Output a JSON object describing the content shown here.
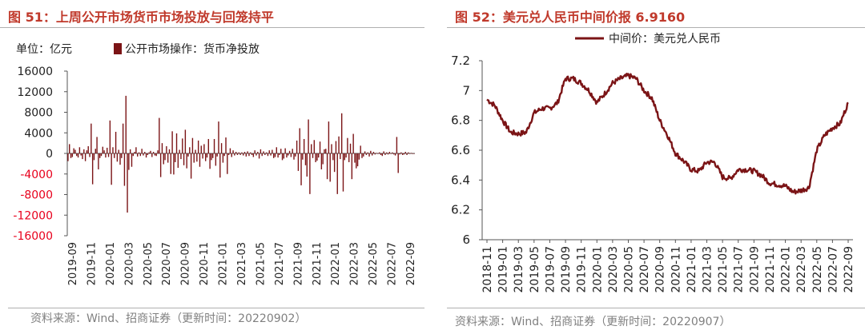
{
  "left": {
    "title": "图 51：上周公开市场货币市场投放与回笼持平",
    "source": "资料来源：Wind、招商证券（更新时间：20220902）",
    "chart_data": {
      "type": "bar",
      "unit_label": "单位：亿元",
      "legend": "公开市场操作：货币净投放",
      "color": "#7b1416",
      "ylim": [
        -16000,
        16000
      ],
      "yticks": [
        "16000",
        "12000",
        "8000",
        "4000",
        "0",
        "-4000",
        "-8000",
        "-12000",
        "-16000"
      ],
      "xticks": [
        "2019-09",
        "2019-11",
        "2020-01",
        "2020-03",
        "2020-05",
        "2020-07",
        "2020-09",
        "2020-11",
        "2021-01",
        "2021-03",
        "2021-05",
        "2021-07",
        "2021-09",
        "2021-11",
        "2022-01",
        "2022-03",
        "2022-05",
        "2022-07",
        "2022-09"
      ],
      "values": [
        -1500,
        1800,
        -900,
        -700,
        1000,
        700,
        -500,
        -800,
        1200,
        -400,
        -1100,
        800,
        -1500,
        600,
        1400,
        -700,
        5800,
        -6000,
        -1300,
        900,
        3200,
        -3100,
        -900,
        -500,
        1300,
        600,
        -800,
        1100,
        -700,
        6400,
        -6100,
        1200,
        -900,
        4200,
        -1600,
        700,
        -2200,
        -900,
        5800,
        -6300,
        11200,
        -11500,
        -3200,
        800,
        -2600,
        -500,
        300,
        1200,
        -600,
        200,
        -500,
        900,
        -400,
        300,
        -800,
        -300,
        200,
        500,
        -700,
        300,
        -400,
        -500,
        600,
        6900,
        -4600,
        2000,
        -2100,
        -1300,
        1400,
        -1800,
        800,
        -4000,
        4300,
        -4100,
        -1700,
        3900,
        -2800,
        700,
        -1100,
        2900,
        -2300,
        4600,
        -2900,
        -600,
        1200,
        -4900,
        3000,
        -1800,
        700,
        -1600,
        2500,
        -2600,
        1500,
        -1000,
        1800,
        -1500,
        -800,
        2800,
        -3000,
        -1300,
        -900,
        2800,
        -2400,
        -600,
        6200,
        -4700,
        2000,
        -1800,
        -500,
        3100,
        -4000,
        -300,
        1000,
        -700,
        600,
        -400,
        300,
        -300,
        200,
        -300,
        200,
        -400,
        300,
        -600,
        400,
        -500,
        200,
        -300,
        -700,
        600,
        -400,
        300,
        -1000,
        800,
        -500,
        400,
        -300,
        200,
        -500,
        600,
        -400,
        700,
        -900,
        -700,
        1200,
        -800,
        -300,
        900,
        -1300,
        -1000,
        1000,
        -800,
        -400,
        500,
        -700,
        900,
        -1200,
        -600,
        2500,
        -3400,
        4900,
        -6200,
        -1200,
        2800,
        -2300,
        -4500,
        6600,
        -7900,
        1800,
        -900,
        2600,
        -1700,
        -1400,
        -800,
        2300,
        -3100,
        -2100,
        800,
        900,
        -5000,
        6200,
        -5500,
        1800,
        -1300,
        -3600,
        2400,
        -7900,
        3300,
        -1100,
        7800,
        -7400,
        -1300,
        -800,
        3000,
        -1700,
        1900,
        -5000,
        3800,
        -1800,
        -2900,
        -2500,
        -1200,
        1500,
        -900,
        -600,
        400,
        -300,
        200,
        -600,
        500,
        -400,
        300,
        -200,
        100,
        -100,
        200,
        -300,
        -500,
        400,
        -300,
        200,
        -200,
        300,
        -100,
        200,
        -200,
        -400,
        3200,
        -3800,
        -200,
        200,
        -300,
        -200,
        300,
        -300,
        200,
        -100,
        100,
        -100,
        0
      ]
    }
  },
  "right": {
    "title": "图 52：美元兑人民币中间价报 6.9160",
    "source": "资料来源：Wind、招商证券（更新时间：20220907）",
    "chart_data": {
      "type": "line",
      "legend": "中间价：美元兑人民币",
      "color": "#7b1416",
      "ylim": [
        6,
        7.2
      ],
      "yticks": [
        "7.2",
        "7",
        "6.8",
        "6.6",
        "6.4",
        "6.2",
        "6"
      ],
      "xticks": [
        "2018-11",
        "2019-01",
        "2019-03",
        "2019-05",
        "2019-07",
        "2019-09",
        "2019-11",
        "2020-01",
        "2020-03",
        "2020-05",
        "2020-07",
        "2020-09",
        "2020-11",
        "2021-01",
        "2021-03",
        "2021-05",
        "2021-07",
        "2021-09",
        "2021-11",
        "2022-01",
        "2022-03",
        "2022-05",
        "2022-07",
        "2022-09"
      ],
      "x": [
        "2018-11",
        "2018-12",
        "2019-01",
        "2019-02",
        "2019-03",
        "2019-04",
        "2019-05",
        "2019-06",
        "2019-07",
        "2019-08",
        "2019-09",
        "2019-10",
        "2019-11",
        "2019-12",
        "2020-01",
        "2020-02",
        "2020-03",
        "2020-04",
        "2020-05",
        "2020-06",
        "2020-07",
        "2020-08",
        "2020-09",
        "2020-10",
        "2020-11",
        "2020-12",
        "2021-01",
        "2021-02",
        "2021-03",
        "2021-04",
        "2021-05",
        "2021-06",
        "2021-07",
        "2021-08",
        "2021-09",
        "2021-10",
        "2021-11",
        "2021-12",
        "2022-01",
        "2022-02",
        "2022-03",
        "2022-04",
        "2022-05",
        "2022-06",
        "2022-07",
        "2022-08",
        "2022-09"
      ],
      "values": [
        6.94,
        6.9,
        6.8,
        6.72,
        6.71,
        6.72,
        6.85,
        6.88,
        6.88,
        6.92,
        7.08,
        7.08,
        7.05,
        7.0,
        6.92,
        6.98,
        7.05,
        7.08,
        7.1,
        7.08,
        7.0,
        6.95,
        6.8,
        6.7,
        6.58,
        6.53,
        6.47,
        6.46,
        6.52,
        6.52,
        6.42,
        6.41,
        6.47,
        6.47,
        6.46,
        6.43,
        6.38,
        6.37,
        6.36,
        6.32,
        6.33,
        6.35,
        6.6,
        6.7,
        6.75,
        6.78,
        6.92
      ]
    }
  }
}
